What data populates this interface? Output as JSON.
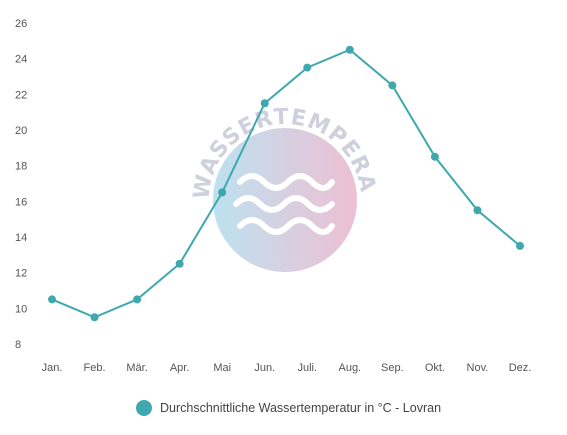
{
  "chart_data": {
    "type": "line",
    "categories": [
      "Jan.",
      "Feb.",
      "Mär.",
      "Apr.",
      "Mai",
      "Jun.",
      "Juli.",
      "Aug.",
      "Sep.",
      "Okt.",
      "Nov.",
      "Dez."
    ],
    "series": [
      {
        "name": "Durchschnittliche Wassertemperatur in °C - Lovran",
        "values": [
          10.5,
          9.5,
          10.5,
          12.5,
          16.5,
          21.5,
          23.5,
          24.5,
          22.5,
          18.5,
          15.5,
          13.5
        ]
      }
    ],
    "yticks": [
      8,
      10,
      12,
      14,
      16,
      18,
      20,
      22,
      24,
      26
    ],
    "ylim": [
      8,
      26
    ],
    "grid": false,
    "legend_position": "bottom-center",
    "series_color": "#3ea8ae"
  },
  "watermark": {
    "text": "WASSERTEMPERATUR.ORG",
    "colors": [
      "#a8d8ec",
      "#e8aac4"
    ]
  }
}
